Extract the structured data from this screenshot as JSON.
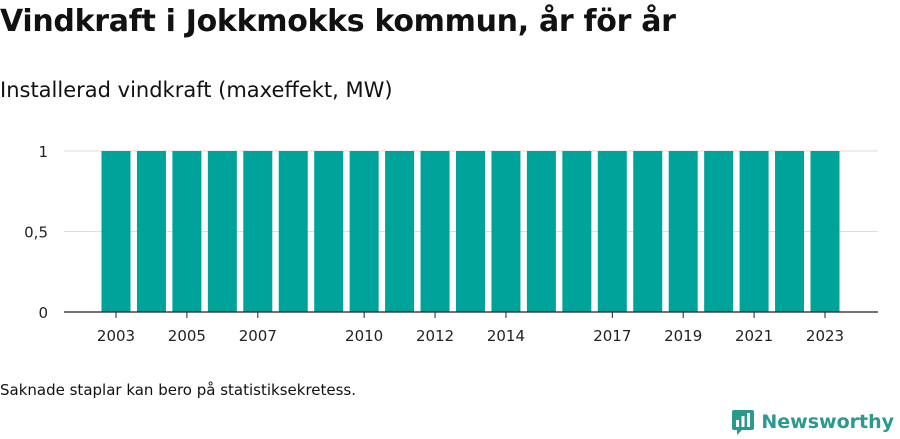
{
  "title": "Vindkraft i Jokkmokks kommun, år för år",
  "subtitle": "Installerad vindkraft (maxeffekt, MW)",
  "footnote": "Saknade staplar kan bero på statistiksekretess.",
  "brand": {
    "name": "Newsworthy",
    "icon": "newsworthy-logo-icon",
    "color": "#2a9a8f"
  },
  "chart_data": {
    "type": "bar",
    "title": "Vindkraft i Jokkmokks kommun, år för år",
    "ylabel": "Installerad vindkraft (maxeffekt, MW)",
    "xlabel": "",
    "categories": [
      "2003",
      "2004",
      "2005",
      "2006",
      "2007",
      "2008",
      "2009",
      "2010",
      "2011",
      "2012",
      "2013",
      "2014",
      "2015",
      "2016",
      "2017",
      "2018",
      "2019",
      "2020",
      "2021",
      "2022",
      "2023"
    ],
    "values": [
      1,
      1,
      1,
      1,
      1,
      1,
      1,
      1,
      1,
      1,
      1,
      1,
      1,
      1,
      1,
      1,
      1,
      1,
      1,
      1,
      1
    ],
    "x_tick_labels": [
      "2003",
      "2005",
      "2007",
      "2010",
      "2012",
      "2014",
      "2017",
      "2019",
      "2021",
      "2023"
    ],
    "y_ticks": [
      0,
      0.5,
      1
    ],
    "y_tick_labels": [
      "0",
      "0,5",
      "1"
    ],
    "ylim": [
      0,
      1
    ],
    "grid": true,
    "bar_color": "#00a39a"
  }
}
